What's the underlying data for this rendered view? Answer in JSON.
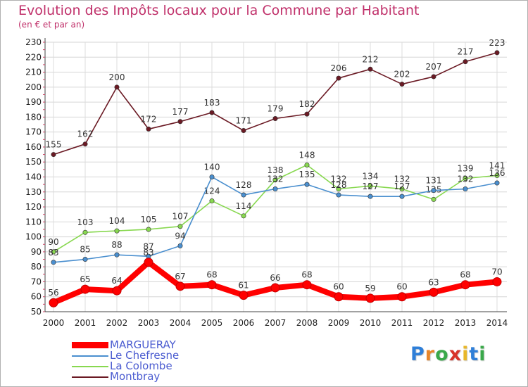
{
  "title": "Evolution des Impôts locaux pour la Commune par Habitant",
  "subtitle": "(en € et par an)",
  "logo": "Proxiti",
  "legend": [
    {
      "name": "MARGUERAY",
      "color": "#ff0000"
    },
    {
      "name": "Le Chefresne",
      "color": "#4a8fcf"
    },
    {
      "name": "La Colombe",
      "color": "#88d850"
    },
    {
      "name": "Montbray",
      "color": "#6b1a24"
    }
  ],
  "chart_data": {
    "type": "line",
    "title": "Evolution des Impôts locaux pour la Commune par Habitant",
    "subtitle": "(en € et par an)",
    "xlabel": "",
    "ylabel": "",
    "categories": [
      "2000",
      "2001",
      "2002",
      "2003",
      "2004",
      "2005",
      "2006",
      "2007",
      "2008",
      "2009",
      "2010",
      "2011",
      "2012",
      "2013",
      "2014"
    ],
    "ylim": [
      50,
      230
    ],
    "yticks": [
      50,
      60,
      70,
      80,
      90,
      100,
      110,
      120,
      130,
      140,
      150,
      160,
      170,
      180,
      190,
      200,
      210,
      220,
      230
    ],
    "grid": true,
    "legend_position": "bottom-left",
    "series": [
      {
        "name": "Montbray",
        "color": "#6b1a24",
        "point_color": "#6b1a24",
        "values": [
          155,
          162,
          200,
          172,
          177,
          183,
          171,
          179,
          182,
          206,
          212,
          202,
          207,
          217,
          223
        ],
        "labels": [
          "155",
          "162",
          "200",
          "172",
          "177",
          "183",
          "171",
          "179",
          "182",
          "206",
          "212",
          "202",
          "207",
          "217",
          "223"
        ]
      },
      {
        "name": "La Colombe",
        "color": "#88d850",
        "point_color": "#88d850",
        "values": [
          90,
          103,
          104,
          105,
          107,
          124,
          114,
          138,
          148,
          132,
          134,
          132,
          125,
          139,
          141
        ],
        "labels": [
          "90",
          "103",
          "104",
          "105",
          "107",
          "124",
          "114",
          "138",
          "148",
          "132",
          "134",
          "132",
          "125",
          "139",
          "141"
        ]
      },
      {
        "name": "Le Chefresne",
        "color": "#4a8fcf",
        "point_color": "#4a8fcf",
        "values": [
          83,
          85,
          88,
          87,
          94,
          140,
          128,
          132,
          135,
          128,
          127,
          127,
          131,
          132,
          136
        ],
        "labels": [
          "83",
          "85",
          "88",
          "87",
          "94",
          "140",
          "128",
          "132",
          "135",
          "128",
          "127",
          "127",
          "131",
          "132",
          "136"
        ]
      },
      {
        "name": "MARGUERAY",
        "color": "#ff0000",
        "point_color": "#ff0000",
        "values": [
          56,
          65,
          64,
          83,
          67,
          68,
          61,
          66,
          68,
          60,
          59,
          60,
          63,
          68,
          70
        ],
        "labels": [
          "56",
          "65",
          "64",
          "83",
          "67",
          "68",
          "61",
          "66",
          "68",
          "60",
          "59",
          "60",
          "63",
          "68",
          "70"
        ]
      }
    ]
  }
}
